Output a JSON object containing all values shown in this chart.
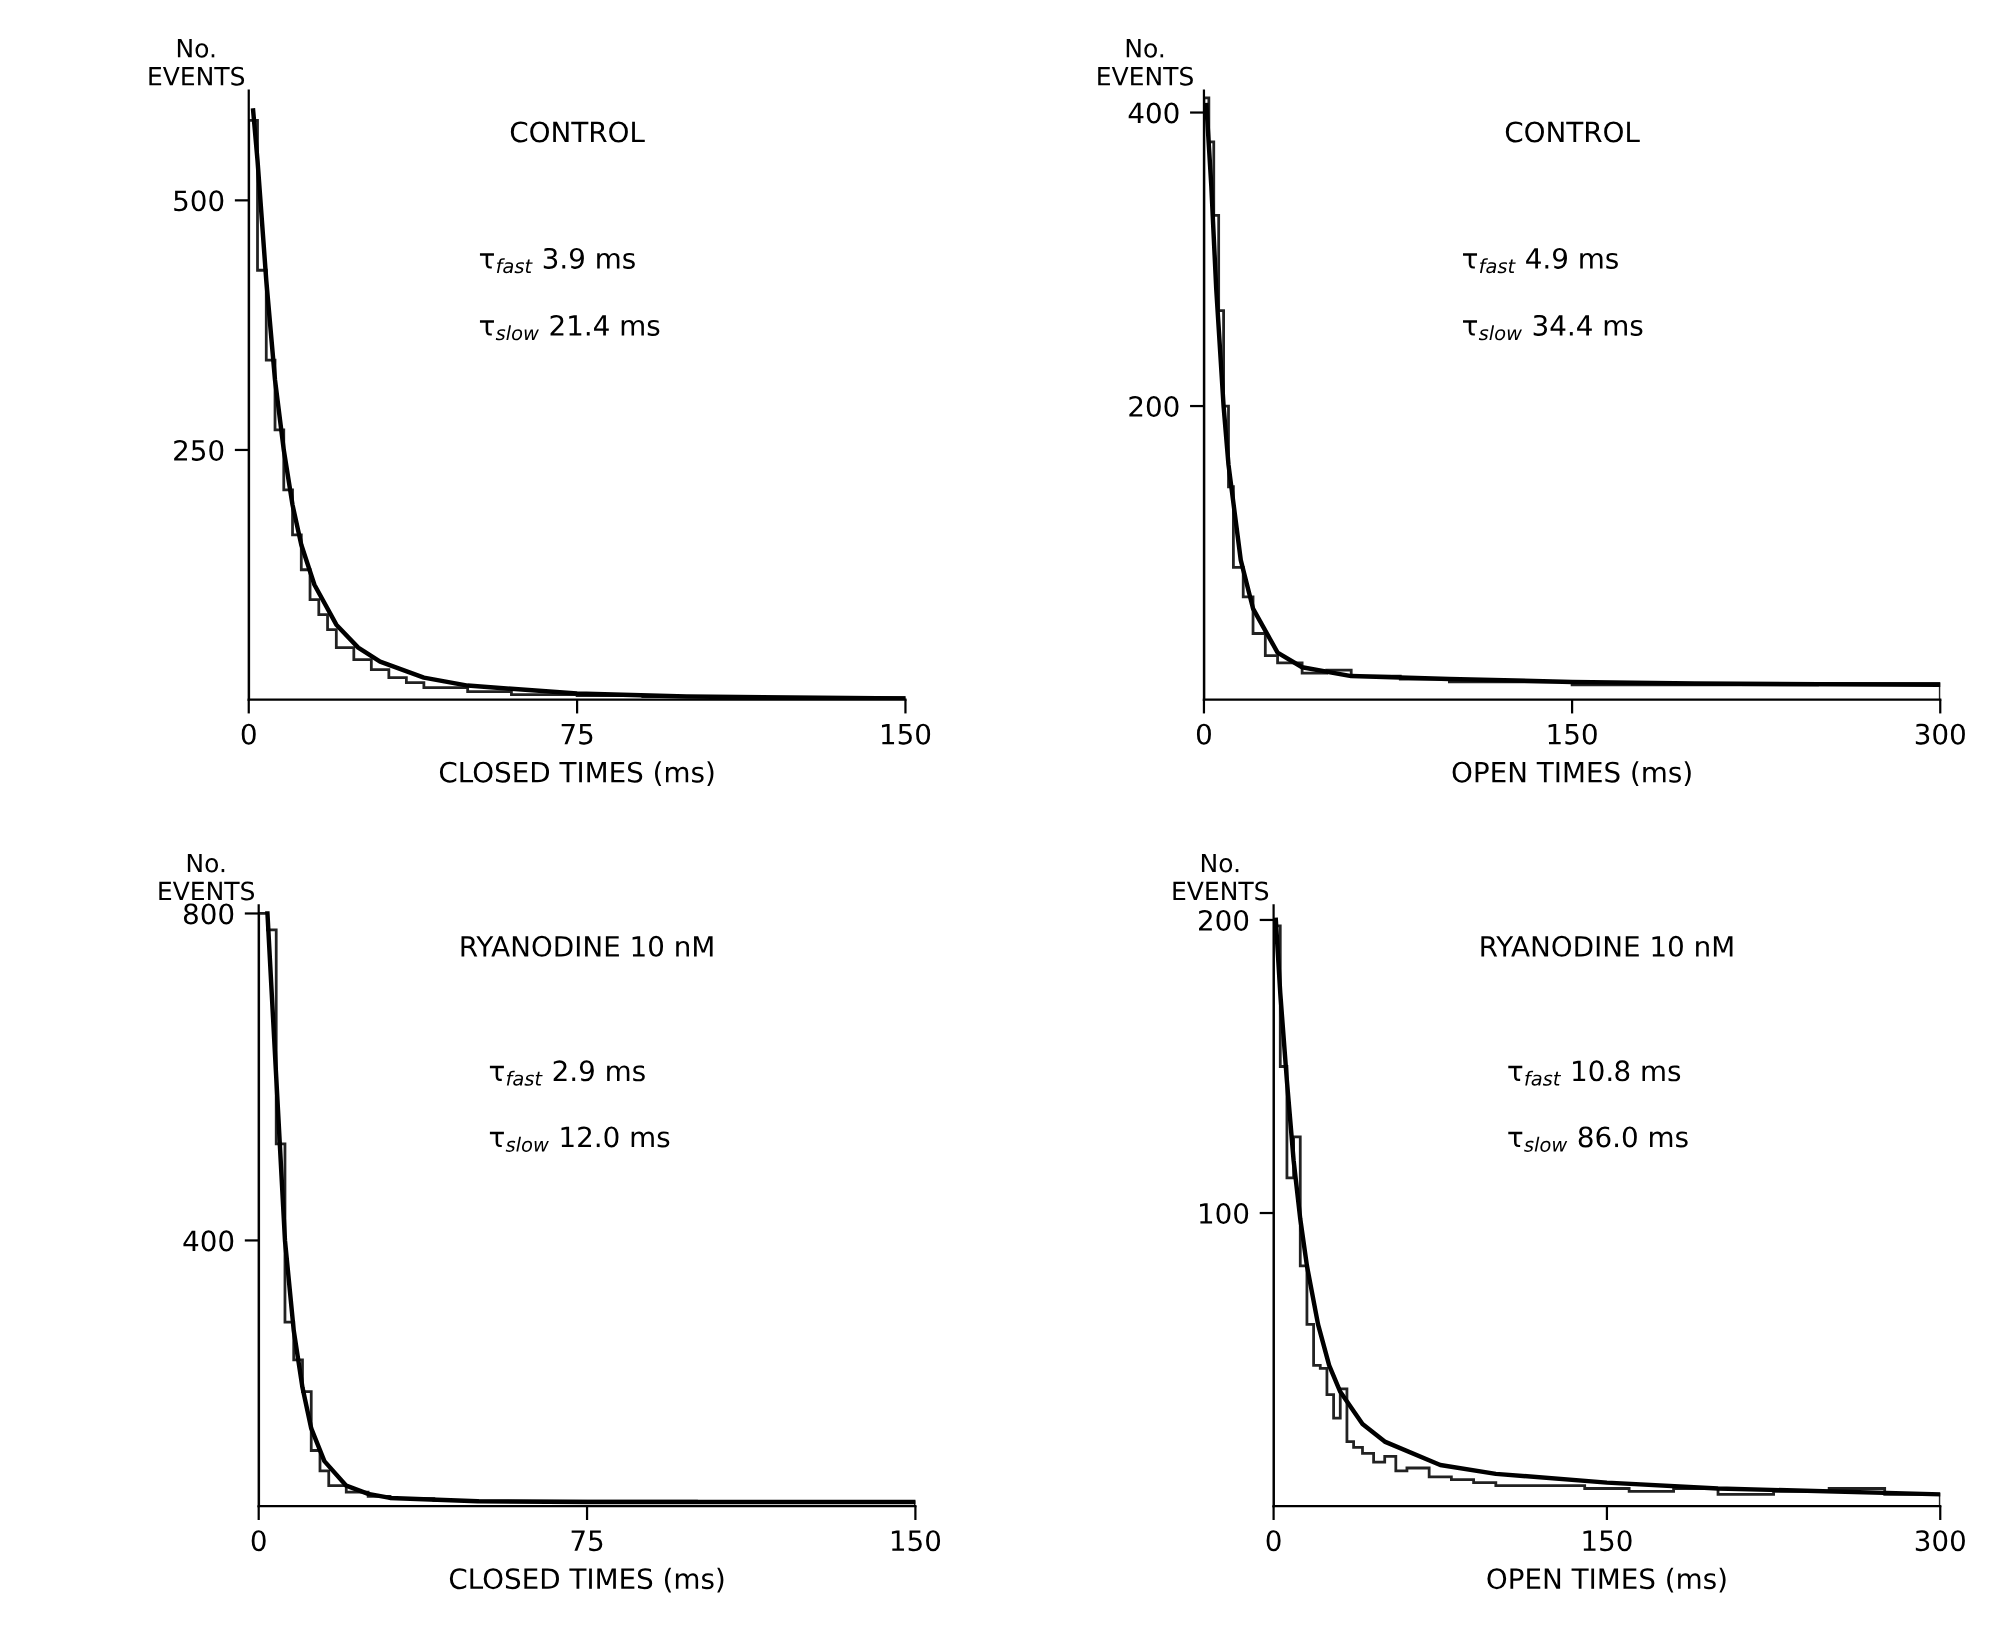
{
  "chart_data": [
    {
      "type": "histogram",
      "title": "CONTROL",
      "xlabel": "CLOSED TIMES (ms)",
      "ylabel": "No.\nEVENTS",
      "color": "#222222",
      "annotations": [
        "τ$_{fast}$ 3.9 ms",
        "τ$_{slow}$ 21.4 ms"
      ],
      "bins": [
        0,
        2,
        4,
        6,
        8,
        10,
        12,
        14,
        16,
        18,
        20,
        24,
        28,
        32,
        36,
        40,
        50,
        60,
        75,
        90,
        110,
        130,
        150
      ],
      "values": [
        580,
        430,
        340,
        270,
        210,
        165,
        130,
        100,
        85,
        70,
        52,
        40,
        30,
        22,
        17,
        12,
        8,
        5,
        4,
        3,
        2,
        2
      ],
      "series": [
        {
          "type": "line",
          "color": "#000000",
          "x": [
            1,
            2,
            4,
            6,
            8,
            10,
            12,
            15,
            20,
            25,
            30,
            40,
            50,
            75,
            100,
            150
          ],
          "values": [
            590,
            540,
            420,
            320,
            250,
            195,
            155,
            115,
            75,
            52,
            38,
            22,
            14,
            6,
            3,
            1
          ]
        }
      ],
      "xlim": [
        0,
        150
      ],
      "xticks": [
        0,
        75,
        150
      ],
      "ylim": [
        0,
        610
      ],
      "yticks": [
        250,
        500
      ],
      "grid": false,
      "legend": false
    },
    {
      "type": "histogram",
      "title": "CONTROL",
      "xlabel": "OPEN TIMES (ms)",
      "ylabel": "No.\nEVENTS",
      "color": "#222222",
      "annotations": [
        "τ$_{fast}$ 4.9 ms",
        "τ$_{slow}$ 34.4 ms"
      ],
      "bins": [
        0,
        2,
        4,
        6,
        8,
        10,
        12,
        16,
        20,
        25,
        30,
        40,
        50,
        60,
        80,
        100,
        150,
        200,
        250,
        300
      ],
      "values": [
        410,
        380,
        330,
        265,
        200,
        145,
        90,
        70,
        45,
        30,
        25,
        18,
        20,
        16,
        14,
        12,
        10,
        10,
        11
      ],
      "series": [
        {
          "type": "line",
          "color": "#000000",
          "x": [
            1,
            3,
            5,
            8,
            10,
            15,
            20,
            30,
            40,
            60,
            100,
            150,
            200,
            300
          ],
          "values": [
            405,
            350,
            280,
            200,
            160,
            95,
            62,
            32,
            22,
            16,
            14,
            12,
            11,
            10
          ]
        }
      ],
      "xlim": [
        0,
        300
      ],
      "xticks": [
        0,
        150,
        300
      ],
      "ylim": [
        0,
        415
      ],
      "yticks": [
        200,
        400
      ],
      "grid": false,
      "legend": false
    },
    {
      "type": "histogram",
      "title": "RYANODINE 10 nM",
      "xlabel": "CLOSED TIMES (ms)",
      "ylabel": "No.\nEVENTS",
      "color": "#222222",
      "annotations": [
        "τ$_{fast}$ 2.9 ms",
        "τ$_{slow}$ 12.0 ms"
      ],
      "bins": [
        0,
        2,
        4,
        6,
        8,
        10,
        12,
        14,
        16,
        20,
        25,
        30,
        40,
        50,
        75,
        100,
        150
      ],
      "values": [
        800,
        780,
        518,
        300,
        254,
        215,
        143,
        118,
        100,
        92,
        87,
        84,
        82,
        81,
        81,
        80
      ],
      "series": [
        {
          "type": "line",
          "color": "#000000",
          "x": [
            2,
            4,
            6,
            8,
            10,
            12,
            15,
            20,
            25,
            30,
            50,
            75,
            150
          ],
          "values": [
            800,
            600,
            400,
            290,
            220,
            170,
            130,
            100,
            90,
            85,
            81,
            80,
            80
          ]
        }
      ],
      "xlim": [
        0,
        150
      ],
      "xticks": [
        0,
        75,
        150
      ],
      "ylim": [
        75,
        810
      ],
      "yticks": [
        400,
        800
      ],
      "grid": false,
      "legend": false
    },
    {
      "type": "histogram",
      "title": "RYANODINE 10 nM",
      "xlabel": "OPEN TIMES (ms)",
      "ylabel": "No.\nEVENTS",
      "color": "#222222",
      "annotations": [
        "τ$_{fast}$ 10.8 ms",
        "τ$_{slow}$ 86.0 ms"
      ],
      "bins": [
        0,
        3,
        6,
        9,
        12,
        15,
        18,
        21,
        24,
        27,
        30,
        33,
        36,
        40,
        45,
        50,
        55,
        60,
        70,
        80,
        90,
        100,
        120,
        140,
        160,
        180,
        200,
        225,
        250,
        275,
        300
      ],
      "values": [
        198,
        150,
        112,
        126,
        82,
        62,
        48,
        47,
        38,
        30,
        40,
        22,
        20,
        18,
        15,
        17,
        12,
        13,
        10,
        9,
        8,
        7,
        7,
        6,
        5,
        6,
        4,
        5,
        6,
        4
      ],
      "series": [
        {
          "type": "line",
          "color": "#000000",
          "x": [
            1,
            3,
            6,
            9,
            12,
            15,
            20,
            25,
            30,
            40,
            50,
            75,
            100,
            150,
            200,
            300
          ],
          "values": [
            200,
            175,
            145,
            118,
            98,
            82,
            62,
            48,
            39,
            28,
            22,
            14,
            11,
            8,
            6,
            4
          ]
        }
      ],
      "xlim": [
        0,
        300
      ],
      "xticks": [
        0,
        150,
        300
      ],
      "ylim": [
        0,
        205
      ],
      "yticks": [
        100,
        200
      ],
      "grid": false,
      "legend": false
    }
  ]
}
